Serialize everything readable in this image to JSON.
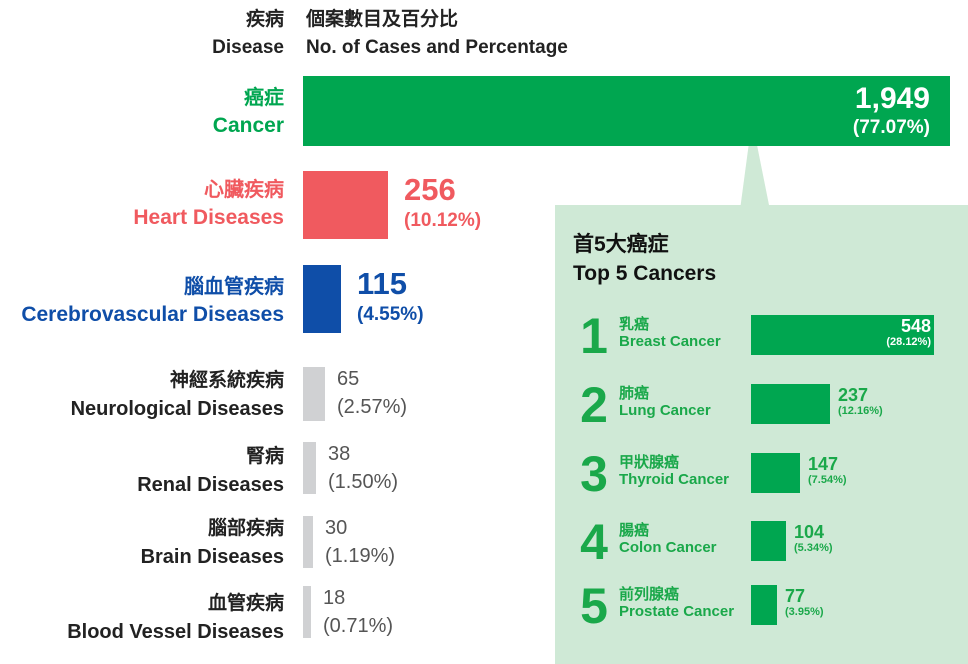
{
  "header": {
    "zh_category": "疾病",
    "en_category": "Disease",
    "zh_measure": "個案數目及百分比",
    "en_measure": "No. of Cases and Percentage"
  },
  "colors": {
    "cancer": "#00a650",
    "heart": "#f05a5f",
    "cerebro": "#0f4ea8",
    "minor": "#d0d1d3",
    "panel_bg": "#cfe9d6",
    "panel_text": "#1aa84a",
    "minor_text": "#555555"
  },
  "chart_data": [
    {
      "type": "bar",
      "orientation": "horizontal",
      "title": "Disease — No. of Cases and Percentage",
      "categories": [
        "Cancer",
        "Heart Diseases",
        "Cerebrovascular Diseases",
        "Neurological Diseases",
        "Renal Diseases",
        "Brain Diseases",
        "Blood Vessel Diseases"
      ],
      "rows": [
        {
          "zh": "癌症",
          "en": "Cancer",
          "value": 1949,
          "value_label": "1,949",
          "percent": "(77.07%)",
          "color": "cancer"
        },
        {
          "zh": "心臟疾病",
          "en": "Heart Diseases",
          "value": 256,
          "value_label": "256",
          "percent": "(10.12%)",
          "color": "heart"
        },
        {
          "zh": "腦血管疾病",
          "en": "Cerebrovascular Diseases",
          "value": 115,
          "value_label": "115",
          "percent": "(4.55%)",
          "color": "cerebro"
        },
        {
          "zh": "神經系統疾病",
          "en": "Neurological Diseases",
          "value": 65,
          "value_label": "65",
          "percent": "(2.57%)",
          "color": "minor"
        },
        {
          "zh": "腎病",
          "en": "Renal Diseases",
          "value": 38,
          "value_label": "38",
          "percent": "(1.50%)",
          "color": "minor"
        },
        {
          "zh": "腦部疾病",
          "en": "Brain Diseases",
          "value": 30,
          "value_label": "30",
          "percent": "(1.19%)",
          "color": "minor"
        },
        {
          "zh": "血管疾病",
          "en": "Blood Vessel Diseases",
          "value": 18,
          "value_label": "18",
          "percent": "(0.71%)",
          "color": "minor"
        }
      ],
      "values": [
        1949,
        256,
        115,
        65,
        38,
        30,
        18
      ],
      "xlim": [
        0,
        1949
      ]
    },
    {
      "type": "bar",
      "orientation": "horizontal",
      "title_zh": "首5大癌症",
      "title": "Top 5 Cancers",
      "categories": [
        "Breast Cancer",
        "Lung Cancer",
        "Thyroid Cancer",
        "Colon Cancer",
        "Prostate Cancer"
      ],
      "rows": [
        {
          "rank": "1",
          "zh": "乳癌",
          "en": "Breast Cancer",
          "value": 548,
          "value_label": "548",
          "percent": "(28.12%)"
        },
        {
          "rank": "2",
          "zh": "肺癌",
          "en": "Lung Cancer",
          "value": 237,
          "value_label": "237",
          "percent": "(12.16%)"
        },
        {
          "rank": "3",
          "zh": "甲狀腺癌",
          "en": "Thyroid Cancer",
          "value": 147,
          "value_label": "147",
          "percent": "(7.54%)"
        },
        {
          "rank": "4",
          "zh": "腸癌",
          "en": "Colon Cancer",
          "value": 104,
          "value_label": "104",
          "percent": "(5.34%)"
        },
        {
          "rank": "5",
          "zh": "前列腺癌",
          "en": "Prostate Cancer",
          "value": 77,
          "value_label": "77",
          "percent": "(3.95%)"
        }
      ],
      "values": [
        548,
        237,
        147,
        104,
        77
      ],
      "xlim": [
        0,
        548
      ]
    }
  ]
}
